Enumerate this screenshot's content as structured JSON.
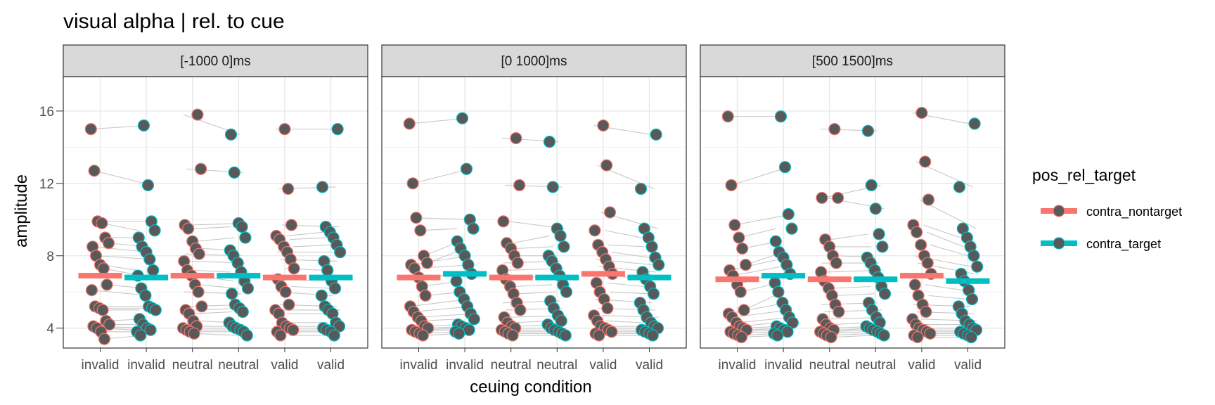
{
  "chart_data": {
    "type": "scatter",
    "title": "visual alpha | rel. to cue",
    "xlabel": "ceuing condition",
    "ylabel": "amplitude",
    "ylim": [
      2.9,
      17.9
    ],
    "yticks": [
      4,
      8,
      12,
      16
    ],
    "grid": true,
    "legend": {
      "title": "pos_rel_target",
      "position": "right",
      "entries": [
        {
          "name": "contra_nontarget",
          "color": "#F8766D"
        },
        {
          "name": "contra_target",
          "color": "#00BFC4"
        }
      ]
    },
    "point_fill": "#595959",
    "line_color": "#c8c8c8",
    "panels": [
      {
        "label": "[-1000 0]ms",
        "categories": [
          "invalid",
          "invalid",
          "neutral",
          "neutral",
          "valid",
          "valid"
        ],
        "category_series": [
          "contra_nontarget",
          "contra_target",
          "contra_nontarget",
          "contra_target",
          "contra_nontarget",
          "contra_target"
        ],
        "means": [
          6.9,
          6.8,
          6.9,
          6.9,
          6.8,
          6.8
        ],
        "columns": [
          [
            15.0,
            12.7,
            9.9,
            9.8,
            9.0,
            8.7,
            8.5,
            8.0,
            7.5,
            7.3,
            6.4,
            6.1,
            5.2,
            5.1,
            5.0,
            4.4,
            4.2,
            4.1,
            4.0,
            3.8,
            3.4
          ],
          [
            15.2,
            11.9,
            9.9,
            9.4,
            9.0,
            8.5,
            8.2,
            7.8,
            7.2,
            6.9,
            6.2,
            5.8,
            5.2,
            5.1,
            5.0,
            4.5,
            4.2,
            4.0,
            3.9,
            3.8,
            3.6
          ],
          [
            15.8,
            12.8,
            9.7,
            9.5,
            8.8,
            8.4,
            8.1,
            7.7,
            7.2,
            6.9,
            6.4,
            6.0,
            5.2,
            5.0,
            4.8,
            4.4,
            4.1,
            4.0,
            3.9,
            3.8,
            3.7
          ],
          [
            14.7,
            12.6,
            9.8,
            9.6,
            9.0,
            8.3,
            8.0,
            7.6,
            7.1,
            6.6,
            6.2,
            5.9,
            5.3,
            5.1,
            4.9,
            4.3,
            4.1,
            4.0,
            3.9,
            3.8,
            3.6
          ],
          [
            15.0,
            11.7,
            9.7,
            9.1,
            8.9,
            8.5,
            8.2,
            7.8,
            7.3,
            6.7,
            6.3,
            6.0,
            5.3,
            5.0,
            4.8,
            4.3,
            4.1,
            4.0,
            3.9,
            3.8,
            3.6
          ],
          [
            15.0,
            11.8,
            9.6,
            9.3,
            9.0,
            8.6,
            8.2,
            7.7,
            7.2,
            6.6,
            6.2,
            5.8,
            5.2,
            5.0,
            4.8,
            4.3,
            4.1,
            4.0,
            3.9,
            3.8,
            3.6
          ]
        ]
      },
      {
        "label": "[0 1000]ms",
        "categories": [
          "invalid",
          "invalid",
          "neutral",
          "neutral",
          "valid",
          "valid"
        ],
        "category_series": [
          "contra_nontarget",
          "contra_target",
          "contra_nontarget",
          "contra_target",
          "contra_nontarget",
          "contra_target"
        ],
        "means": [
          6.8,
          7.0,
          6.8,
          6.8,
          7.0,
          6.8
        ],
        "columns": [
          [
            15.3,
            12.0,
            10.1,
            9.4,
            8.0,
            7.6,
            7.5,
            7.3,
            6.8,
            6.3,
            5.8,
            5.2,
            4.9,
            4.6,
            4.4,
            4.1,
            4.0,
            3.9,
            3.8,
            3.7,
            3.6
          ],
          [
            15.6,
            12.8,
            10.0,
            9.5,
            8.8,
            8.4,
            8.0,
            7.5,
            7.0,
            6.6,
            6.0,
            5.6,
            5.2,
            4.8,
            4.5,
            4.2,
            4.1,
            4.0,
            3.9,
            3.8,
            3.7
          ],
          [
            14.5,
            11.9,
            9.9,
            8.7,
            8.4,
            8.0,
            7.6,
            7.2,
            6.7,
            6.3,
            5.9,
            5.4,
            5.0,
            4.6,
            4.3,
            4.1,
            4.0,
            3.9,
            3.8,
            3.7,
            3.6
          ],
          [
            14.3,
            11.8,
            9.5,
            9.1,
            8.5,
            8.0,
            7.7,
            7.3,
            6.9,
            6.4,
            6.0,
            5.5,
            5.1,
            4.7,
            4.4,
            4.2,
            4.0,
            3.9,
            3.8,
            3.7,
            3.6
          ],
          [
            15.2,
            13.0,
            10.4,
            9.4,
            8.6,
            8.2,
            7.8,
            7.4,
            7.0,
            6.5,
            6.0,
            5.6,
            5.1,
            4.7,
            4.4,
            4.1,
            4.0,
            3.9,
            3.8,
            3.7,
            3.6
          ],
          [
            14.7,
            11.7,
            9.5,
            9.0,
            8.5,
            7.9,
            7.5,
            7.1,
            6.7,
            6.3,
            5.9,
            5.4,
            5.0,
            4.6,
            4.3,
            4.1,
            4.0,
            3.9,
            3.8,
            3.7,
            3.6
          ]
        ]
      },
      {
        "label": "[500 1500]ms",
        "categories": [
          "invalid",
          "invalid",
          "neutral",
          "neutral",
          "valid",
          "valid"
        ],
        "category_series": [
          "contra_nontarget",
          "contra_target",
          "contra_nontarget",
          "contra_target",
          "contra_nontarget",
          "contra_target"
        ],
        "means": [
          6.7,
          6.9,
          6.7,
          6.7,
          6.9,
          6.6
        ],
        "columns": [
          [
            15.7,
            11.9,
            9.7,
            9.0,
            8.4,
            7.5,
            7.2,
            6.9,
            6.4,
            6.0,
            5.0,
            4.8,
            4.6,
            4.3,
            4.1,
            4.0,
            3.9,
            3.8,
            3.7,
            3.6,
            3.5
          ],
          [
            15.7,
            12.9,
            10.3,
            9.5,
            8.8,
            8.2,
            7.9,
            7.5,
            7.0,
            6.5,
            6.0,
            5.4,
            5.0,
            4.6,
            4.3,
            4.1,
            4.0,
            3.9,
            3.8,
            3.7,
            3.6
          ],
          [
            15.0,
            11.2,
            11.2,
            8.9,
            8.5,
            8.0,
            7.6,
            7.1,
            6.6,
            6.2,
            5.8,
            5.3,
            4.9,
            4.5,
            4.2,
            4.0,
            3.9,
            3.8,
            3.7,
            3.6,
            3.5
          ],
          [
            14.9,
            11.9,
            10.6,
            9.2,
            8.5,
            7.9,
            7.6,
            7.2,
            6.8,
            6.3,
            5.9,
            5.4,
            5.0,
            4.6,
            4.3,
            4.1,
            4.0,
            3.9,
            3.8,
            3.7,
            3.6
          ],
          [
            15.9,
            13.2,
            11.1,
            9.7,
            9.3,
            8.6,
            8.0,
            7.6,
            7.0,
            6.4,
            5.8,
            5.3,
            4.9,
            4.5,
            4.2,
            4.0,
            3.9,
            3.8,
            3.7,
            3.6,
            3.5
          ],
          [
            15.3,
            11.8,
            9.5,
            9.0,
            8.5,
            8.0,
            7.4,
            7.0,
            6.6,
            6.1,
            5.6,
            5.2,
            4.8,
            4.4,
            4.2,
            4.0,
            3.9,
            3.8,
            3.7,
            3.6,
            3.5
          ]
        ]
      }
    ]
  }
}
